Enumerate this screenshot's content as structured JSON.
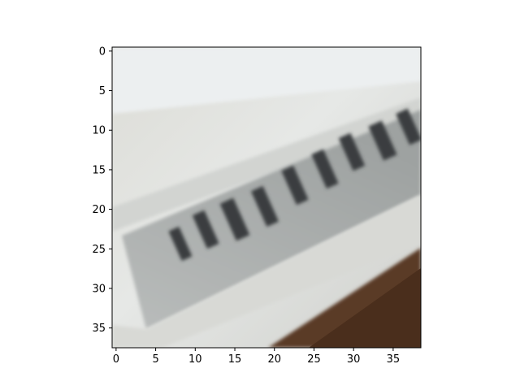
{
  "image": {
    "description_icon": "pixelated-photo-icon",
    "pixel_grid": {
      "columns": 39,
      "rows": 38
    },
    "dominant_colors": [
      "#d9d9d4",
      "#8f9493",
      "#2f3335",
      "#5a3a26",
      "#eef1f1"
    ]
  },
  "axes": {
    "x_ticks": [
      "0",
      "5",
      "10",
      "15",
      "20",
      "25",
      "30",
      "35"
    ],
    "y_ticks": [
      "0",
      "5",
      "10",
      "15",
      "20",
      "25",
      "30",
      "35"
    ]
  }
}
